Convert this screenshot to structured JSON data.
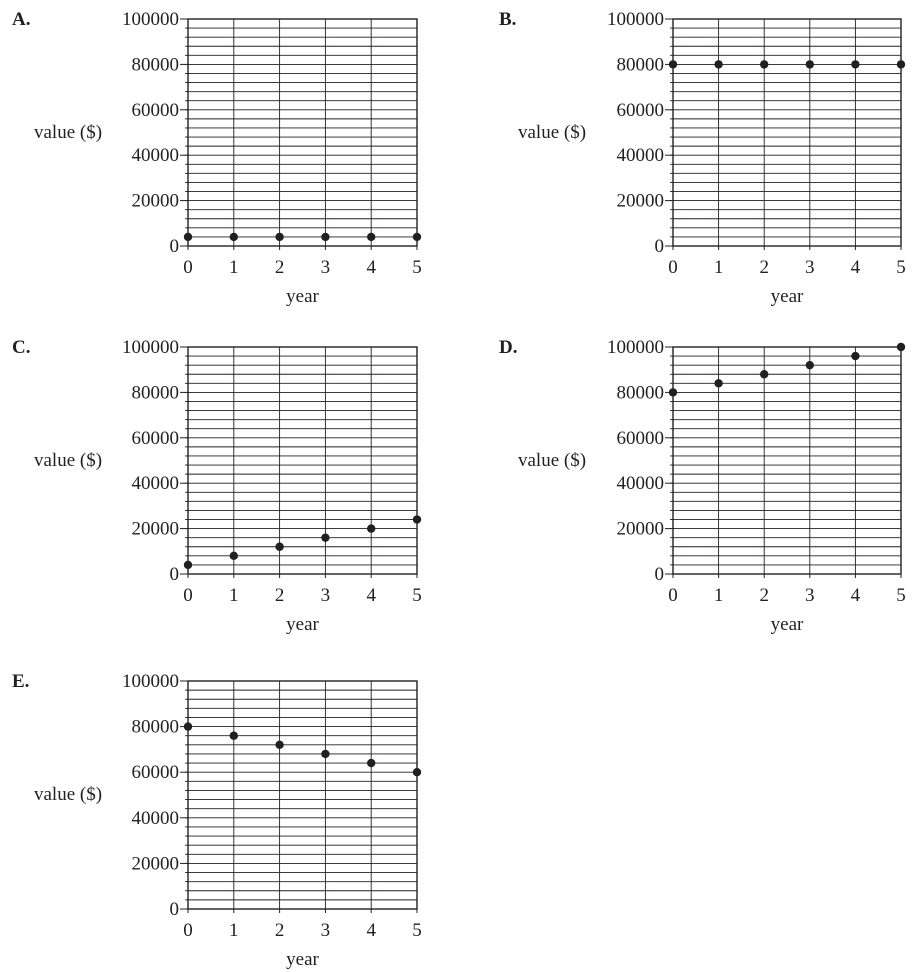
{
  "chart_data": [
    {
      "panel_label": "A.",
      "type": "scatter",
      "xlabel": "year",
      "ylabel": "value ($)",
      "x": [
        0,
        1,
        2,
        3,
        4,
        5
      ],
      "y": [
        4000,
        4000,
        4000,
        4000,
        4000,
        4000
      ],
      "xlim": [
        0,
        5
      ],
      "ylim": [
        0,
        100000
      ],
      "x_ticks": [
        "0",
        "1",
        "2",
        "3",
        "4",
        "5"
      ],
      "y_ticks": [
        "0",
        "20000",
        "40000",
        "60000",
        "80000",
        "100000"
      ],
      "grid": true
    },
    {
      "panel_label": "B.",
      "type": "scatter",
      "xlabel": "year",
      "ylabel": "value ($)",
      "x": [
        0,
        1,
        2,
        3,
        4,
        5
      ],
      "y": [
        80000,
        80000,
        80000,
        80000,
        80000,
        80000
      ],
      "xlim": [
        0,
        5
      ],
      "ylim": [
        0,
        100000
      ],
      "x_ticks": [
        "0",
        "1",
        "2",
        "3",
        "4",
        "5"
      ],
      "y_ticks": [
        "0",
        "20000",
        "40000",
        "60000",
        "80000",
        "100000"
      ],
      "grid": true
    },
    {
      "panel_label": "C.",
      "type": "scatter",
      "xlabel": "year",
      "ylabel": "value ($)",
      "x": [
        0,
        1,
        2,
        3,
        4,
        5
      ],
      "y": [
        4000,
        8000,
        12000,
        16000,
        20000,
        24000
      ],
      "xlim": [
        0,
        5
      ],
      "ylim": [
        0,
        100000
      ],
      "x_ticks": [
        "0",
        "1",
        "2",
        "3",
        "4",
        "5"
      ],
      "y_ticks": [
        "0",
        "20000",
        "40000",
        "60000",
        "80000",
        "100000"
      ],
      "grid": true
    },
    {
      "panel_label": "D.",
      "type": "scatter",
      "xlabel": "year",
      "ylabel": "value ($)",
      "x": [
        0,
        1,
        2,
        3,
        4,
        5
      ],
      "y": [
        80000,
        84000,
        88000,
        92000,
        96000,
        100000
      ],
      "xlim": [
        0,
        5
      ],
      "ylim": [
        0,
        100000
      ],
      "x_ticks": [
        "0",
        "1",
        "2",
        "3",
        "4",
        "5"
      ],
      "y_ticks": [
        "0",
        "20000",
        "40000",
        "60000",
        "80000",
        "100000"
      ],
      "grid": true
    },
    {
      "panel_label": "E.",
      "type": "scatter",
      "xlabel": "year",
      "ylabel": "value ($)",
      "x": [
        0,
        1,
        2,
        3,
        4,
        5
      ],
      "y": [
        80000,
        76000,
        72000,
        68000,
        64000,
        60000
      ],
      "xlim": [
        0,
        5
      ],
      "ylim": [
        0,
        100000
      ],
      "x_ticks": [
        "0",
        "1",
        "2",
        "3",
        "4",
        "5"
      ],
      "y_ticks": [
        "0",
        "20000",
        "40000",
        "60000",
        "80000",
        "100000"
      ],
      "grid": true
    }
  ]
}
